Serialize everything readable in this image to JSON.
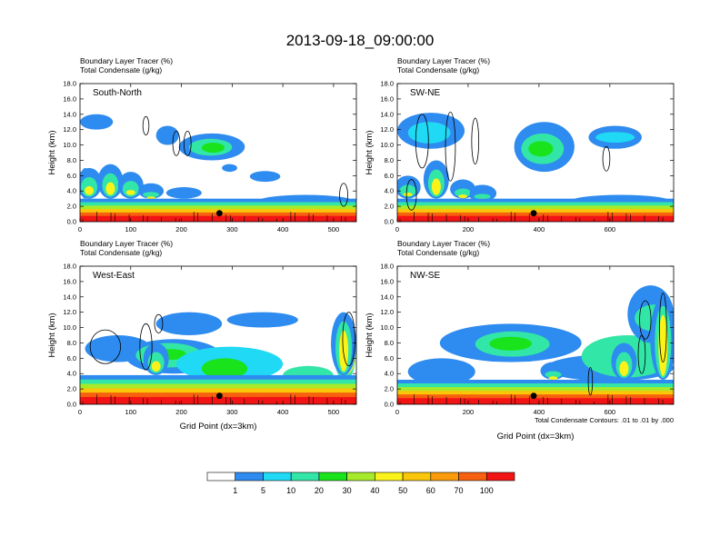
{
  "title": "2013-09-18_09:00:00",
  "colorbar": {
    "levels": [
      "1",
      "5",
      "10",
      "20",
      "30",
      "40",
      "50",
      "60",
      "70",
      "100"
    ],
    "colors": [
      "#ffffff",
      "#2e8bef",
      "#1fd9f5",
      "#32e6a8",
      "#19e31a",
      "#a6ea2a",
      "#fbf21a",
      "#f9c60a",
      "#f99b0a",
      "#f7600e",
      "#f21414"
    ]
  },
  "chart_data": [
    {
      "type": "heatmap",
      "panel_label": "South-North",
      "header_lines": [
        "Boundary Layer Tracer   (%)",
        "Total Condensate   (g/kg)"
      ],
      "ylabel": "Height (km)",
      "xlabel": "",
      "xlim": [
        0,
        545
      ],
      "ylim": [
        0,
        18
      ],
      "xticks": [
        "0",
        "100",
        "200",
        "300",
        "400",
        "500"
      ],
      "yticks": [
        "0.0",
        "2.0",
        "4.0",
        "6.0",
        "8.0",
        "10.0",
        "12.0",
        "14.0",
        "16.0",
        "18.0"
      ],
      "marker": {
        "x": 275,
        "y": 1.1
      },
      "bl_top_km": 3.0,
      "convection": [
        [
          18,
          7
        ],
        [
          60,
          7.5
        ],
        [
          100,
          6.5
        ],
        [
          140,
          5.0
        ]
      ],
      "layers": [
        {
          "x0": 0,
          "x1": 65,
          "y0": 12.0,
          "y1": 14.0,
          "level": 1
        },
        {
          "x0": 150,
          "x1": 195,
          "y0": 10.0,
          "y1": 12.5,
          "level": 1
        },
        {
          "x0": 195,
          "x1": 325,
          "y0": 8.0,
          "y1": 11.5,
          "level": 1
        },
        {
          "x0": 215,
          "x1": 300,
          "y0": 8.6,
          "y1": 10.8,
          "level": 3
        },
        {
          "x0": 240,
          "x1": 285,
          "y0": 9.0,
          "y1": 10.3,
          "level": 4
        },
        {
          "x0": 0,
          "x1": 20,
          "y0": 3.0,
          "y1": 7.0,
          "level": 1
        },
        {
          "x0": 170,
          "x1": 240,
          "y0": 3.0,
          "y1": 4.5,
          "level": 1
        },
        {
          "x0": 345,
          "x1": 545,
          "y0": 1.5,
          "y1": 3.5,
          "level": 1
        },
        {
          "x0": 360,
          "x1": 545,
          "y0": 1.5,
          "y1": 2.2,
          "level": 3
        },
        {
          "x0": 280,
          "x1": 310,
          "y0": 6.5,
          "y1": 7.5,
          "level": 1
        },
        {
          "x0": 335,
          "x1": 395,
          "y0": 5.2,
          "y1": 6.6,
          "level": 1
        }
      ],
      "contours": [
        [
          130,
          12.5,
          6,
          1.2
        ],
        [
          190,
          10.2,
          7,
          1.6
        ],
        [
          212,
          10.2,
          7,
          1.6
        ],
        [
          520,
          3.5,
          8,
          1.5
        ]
      ],
      "rainbow_color": "#3ae060"
    },
    {
      "type": "heatmap",
      "panel_label": "SW-NE",
      "header_lines": [
        "Boundary Layer Tracer   (%)",
        "Total Condensate   (g/kg)"
      ],
      "ylabel": "Height (km)",
      "xlabel": "",
      "xlim": [
        0,
        780
      ],
      "ylim": [
        0,
        18
      ],
      "xticks": [
        "0",
        "200",
        "400",
        "600"
      ],
      "yticks": [
        "0.0",
        "2.0",
        "4.0",
        "6.0",
        "8.0",
        "10.0",
        "12.0",
        "14.0",
        "16.0",
        "18.0"
      ],
      "marker": {
        "x": 385,
        "y": 1.1
      },
      "bl_top_km": 3.0,
      "convection": [
        [
          30,
          6
        ],
        [
          110,
          8
        ],
        [
          185,
          5.5
        ],
        [
          240,
          4.5
        ]
      ],
      "layers": [
        {
          "x0": 0,
          "x1": 190,
          "y0": 9.5,
          "y1": 14.2,
          "level": 1
        },
        {
          "x0": 30,
          "x1": 150,
          "y0": 10.2,
          "y1": 13.0,
          "level": 2
        },
        {
          "x0": 330,
          "x1": 500,
          "y0": 6.5,
          "y1": 13.0,
          "level": 1
        },
        {
          "x0": 350,
          "x1": 470,
          "y0": 7.5,
          "y1": 11.5,
          "level": 3
        },
        {
          "x0": 370,
          "x1": 440,
          "y0": 8.5,
          "y1": 10.5,
          "level": 4
        },
        {
          "x0": 540,
          "x1": 690,
          "y0": 9.5,
          "y1": 12.5,
          "level": 1
        },
        {
          "x0": 560,
          "x1": 670,
          "y0": 10.3,
          "y1": 11.7,
          "level": 2
        },
        {
          "x0": 200,
          "x1": 280,
          "y0": 2.6,
          "y1": 4.8,
          "level": 1
        },
        {
          "x0": 480,
          "x1": 780,
          "y0": 1.5,
          "y1": 3.5,
          "level": 1
        },
        {
          "x0": 500,
          "x1": 780,
          "y0": 1.5,
          "y1": 2.4,
          "level": 3
        }
      ],
      "contours": [
        [
          70,
          10.5,
          18,
          3.5
        ],
        [
          150,
          9.8,
          14,
          4.5
        ],
        [
          220,
          10.5,
          10,
          3
        ],
        [
          40,
          3.5,
          14,
          2.0
        ],
        [
          590,
          8.2,
          10,
          1.6
        ]
      ],
      "rainbow_color": "#3ae060"
    },
    {
      "type": "heatmap",
      "panel_label": "West-East",
      "header_lines": [
        "Boundary Layer Tracer   (%)",
        "Total Condensate   (g/kg)"
      ],
      "ylabel": "Height (km)",
      "xlabel": "Grid Point (dx=3km)",
      "xlim": [
        0,
        545
      ],
      "ylim": [
        0,
        18
      ],
      "xticks": [
        "0",
        "100",
        "200",
        "300",
        "400",
        "500"
      ],
      "yticks": [
        "0.0",
        "2.0",
        "4.0",
        "6.0",
        "8.0",
        "10.0",
        "12.0",
        "14.0",
        "16.0",
        "18.0"
      ],
      "marker": {
        "x": 275,
        "y": 1.1
      },
      "bl_top_km": 3.8,
      "convection": [
        [
          520,
          12
        ],
        [
          150,
          8
        ]
      ],
      "layers": [
        {
          "x0": 10,
          "x1": 140,
          "y0": 5.5,
          "y1": 9.0,
          "level": 1
        },
        {
          "x0": 150,
          "x1": 280,
          "y0": 9.0,
          "y1": 12.0,
          "level": 1
        },
        {
          "x0": 90,
          "x1": 280,
          "y0": 4.0,
          "y1": 8.5,
          "level": 1
        },
        {
          "x0": 110,
          "x1": 240,
          "y0": 4.8,
          "y1": 8.0,
          "level": 3
        },
        {
          "x0": 150,
          "x1": 210,
          "y0": 5.8,
          "y1": 7.2,
          "level": 4
        },
        {
          "x0": 290,
          "x1": 430,
          "y0": 10.0,
          "y1": 12.0,
          "level": 1
        },
        {
          "x0": 190,
          "x1": 400,
          "y0": 3.0,
          "y1": 7.5,
          "level": 2
        },
        {
          "x0": 240,
          "x1": 330,
          "y0": 3.3,
          "y1": 6.0,
          "level": 4
        },
        {
          "x0": 400,
          "x1": 500,
          "y0": 2.5,
          "y1": 5.0,
          "level": 3
        },
        {
          "x0": 500,
          "x1": 545,
          "y0": 3.0,
          "y1": 11.5,
          "level": 3
        },
        {
          "x0": 510,
          "x1": 545,
          "y0": 4.0,
          "y1": 10.5,
          "level": 6
        }
      ],
      "contours": [
        [
          50,
          7.5,
          30,
          2.2
        ],
        [
          130,
          7.5,
          12,
          3.0
        ],
        [
          155,
          10.5,
          8,
          1.2
        ],
        [
          530,
          8.5,
          12,
          3.5
        ]
      ],
      "rainbow_color": "#3ae060"
    },
    {
      "type": "heatmap",
      "panel_label": "NW-SE",
      "header_lines": [
        "Boundary Layer Tracer   (%)",
        "Total Condensate   (g/kg)"
      ],
      "ylabel": "Height (km)",
      "xlabel": "Grid Point (dx=3km)",
      "note": "Total Condensate Contours: .01 to .01 by .000",
      "xlim": [
        0,
        780
      ],
      "ylim": [
        0,
        18
      ],
      "xticks": [
        "0",
        "200",
        "400",
        "600"
      ],
      "yticks": [
        "0.0",
        "2.0",
        "4.0",
        "6.0",
        "8.0",
        "10.0",
        "12.0",
        "14.0",
        "16.0",
        "18.0"
      ],
      "marker": {
        "x": 385,
        "y": 1.1
      },
      "bl_top_km": 3.2,
      "convection": [
        [
          750,
          14
        ],
        [
          640,
          8
        ],
        [
          440,
          5.5
        ]
      ],
      "layers": [
        {
          "x0": 120,
          "x1": 520,
          "y0": 5.5,
          "y1": 10.5,
          "level": 1
        },
        {
          "x0": 220,
          "x1": 430,
          "y0": 6.2,
          "y1": 9.5,
          "level": 3
        },
        {
          "x0": 260,
          "x1": 380,
          "y0": 7.0,
          "y1": 8.8,
          "level": 4
        },
        {
          "x0": 30,
          "x1": 220,
          "y0": 2.5,
          "y1": 6.0,
          "level": 1
        },
        {
          "x0": 420,
          "x1": 780,
          "y0": 3.0,
          "y1": 6.5,
          "level": 1
        },
        {
          "x0": 520,
          "x1": 780,
          "y0": 3.5,
          "y1": 9.0,
          "level": 3
        },
        {
          "x0": 650,
          "x1": 780,
          "y0": 8.0,
          "y1": 15.5,
          "level": 1
        },
        {
          "x0": 670,
          "x1": 780,
          "y0": 9.5,
          "y1": 13.0,
          "level": 3
        }
      ],
      "contours": [
        [
          700,
          11.0,
          16,
          2.5
        ],
        [
          750,
          10.0,
          10,
          4.5
        ],
        [
          690,
          6.5,
          10,
          2.5
        ],
        [
          545,
          3.0,
          6,
          1.8
        ]
      ],
      "rainbow_color": "#3ae060"
    }
  ]
}
